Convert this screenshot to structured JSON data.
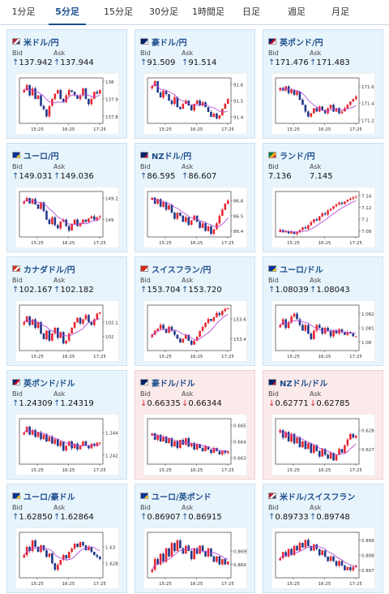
{
  "tabs": [
    {
      "label": "1分足"
    },
    {
      "label": "5分足"
    },
    {
      "label": "15分足"
    },
    {
      "label": "30分足"
    },
    {
      "label": "1時間足"
    },
    {
      "label": "日足"
    },
    {
      "label": "週足"
    },
    {
      "label": "月足"
    }
  ],
  "active_tab": 1,
  "colors": {
    "up": "#e8262f",
    "down": "#21388a",
    "ma": "#b64dd6",
    "accent": "#1d4f8c",
    "card_bg": "#e8f4fc",
    "card_bg_down": "#fbeaea"
  },
  "labels": {
    "bid": "Bid",
    "ask": "Ask"
  },
  "pairs": [
    {
      "name": "米ドル/円",
      "flag": "flag-us-icon",
      "dir": "up",
      "bid": "137.942",
      "ask": "137.944",
      "chart_data": {
        "type": "candlestick",
        "x_ticks": [
          "15:25",
          "16:25",
          "17:25"
        ],
        "y_ticks": [
          "138",
          "137.9",
          "137.8"
        ],
        "ylim": [
          137.76,
          138.02
        ],
        "close": [
          137.95,
          137.98,
          137.92,
          137.96,
          137.9,
          137.92,
          137.86,
          137.84,
          137.8,
          137.86,
          137.9,
          137.93,
          137.95,
          137.9,
          137.88,
          137.92,
          137.95,
          137.94,
          137.92,
          137.9,
          137.92,
          137.96,
          137.9,
          137.87,
          137.9,
          137.94,
          137.93,
          137.95
        ]
      }
    },
    {
      "name": "豪ドル/円",
      "flag": "flag-au-icon",
      "dir": "up",
      "bid": "91.509",
      "ask": "91.514",
      "chart_data": {
        "type": "candlestick",
        "x_ticks": [
          "15:25",
          "16:25",
          "17:25"
        ],
        "y_ticks": [
          "91.6",
          "91.5",
          "91.4"
        ],
        "ylim": [
          91.36,
          91.64
        ],
        "close": [
          91.59,
          91.62,
          91.55,
          91.52,
          91.56,
          91.54,
          91.5,
          91.48,
          91.52,
          91.46,
          91.45,
          91.48,
          91.5,
          91.47,
          91.44,
          91.48,
          91.5,
          91.47,
          91.49,
          91.46,
          91.43,
          91.4,
          91.42,
          91.39,
          91.41,
          91.45,
          91.48,
          91.51
        ]
      }
    },
    {
      "name": "英ポンド/円",
      "flag": "flag-gb-icon",
      "dir": "up",
      "bid": "171.476",
      "ask": "171.483",
      "chart_data": {
        "type": "candlestick",
        "x_ticks": [
          "15:25",
          "16:25",
          "17:25"
        ],
        "y_ticks": [
          "171.6",
          "171.4",
          "171.2"
        ],
        "ylim": [
          171.16,
          171.7
        ],
        "close": [
          171.58,
          171.55,
          171.6,
          171.52,
          171.56,
          171.5,
          171.54,
          171.44,
          171.38,
          171.3,
          171.24,
          171.28,
          171.34,
          171.3,
          171.36,
          171.32,
          171.28,
          171.34,
          171.38,
          171.3,
          171.34,
          171.28,
          171.3,
          171.34,
          171.38,
          171.42,
          171.45,
          171.48
        ]
      }
    },
    {
      "name": "ユーロ/円",
      "flag": "flag-eu-icon",
      "dir": "up",
      "bid": "149.031",
      "ask": "149.036",
      "chart_data": {
        "type": "candlestick",
        "x_ticks": [
          "15:25",
          "16:25",
          "17:25"
        ],
        "y_ticks": [
          "149.2",
          "149"
        ],
        "ylim": [
          148.84,
          149.26
        ],
        "close": [
          149.17,
          149.2,
          149.15,
          149.19,
          149.14,
          149.1,
          149.16,
          149.08,
          149.0,
          148.96,
          149.02,
          148.95,
          148.92,
          148.98,
          149.0,
          148.94,
          148.9,
          148.96,
          149.0,
          148.94,
          148.97,
          149.0,
          148.98,
          149.01,
          149.03,
          149.0,
          149.02,
          149.03
        ]
      }
    },
    {
      "name": "NZドル/円",
      "flag": "flag-nz-icon",
      "dir": "up",
      "bid": "86.595",
      "ask": "86.607",
      "chart_data": {
        "type": "candlestick",
        "x_ticks": [
          "15:25",
          "16:25",
          "17:25"
        ],
        "y_ticks": [
          "86.6",
          "86.5",
          "86.4"
        ],
        "ylim": [
          86.36,
          86.66
        ],
        "close": [
          86.62,
          86.58,
          86.61,
          86.56,
          86.59,
          86.54,
          86.57,
          86.52,
          86.48,
          86.52,
          86.5,
          86.46,
          86.49,
          86.44,
          86.47,
          86.5,
          86.46,
          86.42,
          86.45,
          86.4,
          86.43,
          86.38,
          86.41,
          86.45,
          86.5,
          86.54,
          86.58,
          86.6
        ]
      }
    },
    {
      "name": "ランド/円",
      "flag": "flag-za-icon",
      "dir": "neutral",
      "bid": "7.136",
      "ask": "7.145",
      "chart_data": {
        "type": "candlestick",
        "x_ticks": [
          "15:25",
          "16:25",
          "17:25"
        ],
        "y_ticks": [
          "7.14",
          "7.12",
          "7.1",
          "7.08"
        ],
        "ylim": [
          7.07,
          7.147
        ],
        "close": [
          7.082,
          7.078,
          7.08,
          7.076,
          7.079,
          7.075,
          7.078,
          7.082,
          7.086,
          7.084,
          7.09,
          7.095,
          7.1,
          7.098,
          7.105,
          7.11,
          7.108,
          7.115,
          7.118,
          7.122,
          7.125,
          7.128,
          7.126,
          7.13,
          7.133,
          7.135,
          7.137,
          7.138
        ]
      }
    },
    {
      "name": "カナダドル/円",
      "flag": "flag-ca-icon",
      "dir": "up",
      "bid": "102.167",
      "ask": "102.182",
      "chart_data": {
        "type": "candlestick",
        "x_ticks": [
          "15:25",
          "16:25",
          "17:25"
        ],
        "y_ticks": [
          "102.1",
          "102"
        ],
        "ylim": [
          101.9,
          102.22
        ],
        "close": [
          102.1,
          102.14,
          102.08,
          102.12,
          102.06,
          102.1,
          102.02,
          101.98,
          102.04,
          101.97,
          102.02,
          102.06,
          101.99,
          102.03,
          101.95,
          101.97,
          102.02,
          102.06,
          102.1,
          102.13,
          102.09,
          102.12,
          102.15,
          102.1,
          102.08,
          102.12,
          102.16,
          102.17
        ]
      }
    },
    {
      "name": "スイスフラン/円",
      "flag": "flag-ch-icon",
      "dir": "up",
      "bid": "153.704",
      "ask": "153.720",
      "chart_data": {
        "type": "candlestick",
        "x_ticks": [
          "15:25",
          "16:25",
          "17:25"
        ],
        "y_ticks": [
          "153.6",
          "153.4"
        ],
        "ylim": [
          153.28,
          153.74
        ],
        "close": [
          153.44,
          153.48,
          153.5,
          153.54,
          153.5,
          153.46,
          153.52,
          153.48,
          153.44,
          153.4,
          153.36,
          153.4,
          153.44,
          153.38,
          153.34,
          153.38,
          153.42,
          153.48,
          153.52,
          153.56,
          153.6,
          153.58,
          153.62,
          153.66,
          153.64,
          153.68,
          153.7,
          153.71
        ]
      }
    },
    {
      "name": "ユーロ/ドル",
      "flag": "flag-eu-icon",
      "dir": "up",
      "bid": "1.08039",
      "ask": "1.08043",
      "chart_data": {
        "type": "candlestick",
        "x_ticks": [
          "15:25",
          "16:25",
          "17:25"
        ],
        "y_ticks": [
          "1.082",
          "1.081",
          "1.08"
        ],
        "ylim": [
          1.0794,
          1.0826
        ],
        "close": [
          1.0812,
          1.0816,
          1.081,
          1.0814,
          1.0818,
          1.082,
          1.0816,
          1.0812,
          1.0808,
          1.0812,
          1.0806,
          1.0802,
          1.0808,
          1.0812,
          1.081,
          1.0806,
          1.081,
          1.0808,
          1.0804,
          1.0808,
          1.0806,
          1.0809,
          1.0807,
          1.0805,
          1.0807,
          1.0806,
          1.0804,
          1.0804
        ]
      }
    },
    {
      "name": "英ポンド/ドル",
      "flag": "flag-gb-icon",
      "dir": "up",
      "bid": "1.24309",
      "ask": "1.24319",
      "chart_data": {
        "type": "candlestick",
        "x_ticks": [
          "15:25",
          "16:25",
          "17:25"
        ],
        "y_ticks": [
          "1.244",
          "1.242"
        ],
        "ylim": [
          1.2412,
          1.2452
        ],
        "close": [
          1.244,
          1.2445,
          1.2438,
          1.2442,
          1.2436,
          1.244,
          1.2434,
          1.2438,
          1.2432,
          1.2436,
          1.243,
          1.2434,
          1.2428,
          1.2432,
          1.2424,
          1.2428,
          1.2432,
          1.2426,
          1.243,
          1.2425,
          1.2428,
          1.2432,
          1.2428,
          1.2426,
          1.243,
          1.2428,
          1.2431,
          1.2431
        ]
      }
    },
    {
      "name": "豪ドル/ドル",
      "flag": "flag-au-icon",
      "dir": "down",
      "bid": "0.66335",
      "ask": "0.66344",
      "chart_data": {
        "type": "candlestick",
        "x_ticks": [
          "15:25",
          "16:25",
          "17:25"
        ],
        "y_ticks": [
          "0.665",
          "0.664",
          "0.663"
        ],
        "ylim": [
          0.6626,
          0.6654
        ],
        "close": [
          0.6645,
          0.6641,
          0.6644,
          0.664,
          0.6643,
          0.6639,
          0.6642,
          0.6637,
          0.664,
          0.6636,
          0.6641,
          0.6638,
          0.6642,
          0.6637,
          0.6639,
          0.6635,
          0.6638,
          0.6636,
          0.6634,
          0.6637,
          0.6635,
          0.6633,
          0.6636,
          0.6634,
          0.6632,
          0.6634,
          0.6633,
          0.6634
        ]
      }
    },
    {
      "name": "NZドル/ドル",
      "flag": "flag-nz-icon",
      "dir": "down",
      "bid": "0.62771",
      "ask": "0.62785",
      "chart_data": {
        "type": "candlestick",
        "x_ticks": [
          "15:25",
          "16:25",
          "17:25"
        ],
        "y_ticks": [
          "0.628",
          "0.627"
        ],
        "ylim": [
          0.6262,
          0.6286
        ],
        "close": [
          0.628,
          0.6276,
          0.6279,
          0.6274,
          0.6278,
          0.6273,
          0.6276,
          0.6271,
          0.6274,
          0.627,
          0.6273,
          0.6268,
          0.6272,
          0.6269,
          0.6266,
          0.627,
          0.6267,
          0.6265,
          0.6268,
          0.6264,
          0.6267,
          0.627,
          0.6268,
          0.6272,
          0.6275,
          0.6278,
          0.6276,
          0.6277
        ]
      }
    },
    {
      "name": "ユーロ/豪ドル",
      "flag": "flag-eu-icon",
      "dir": "up",
      "bid": "1.62850",
      "ask": "1.62864",
      "chart_data": {
        "type": "candlestick",
        "x_ticks": [
          "15:25",
          "16:25",
          "17:25"
        ],
        "y_ticks": [
          "1.63",
          "1.628"
        ],
        "ylim": [
          1.6262,
          1.6318
        ],
        "close": [
          1.629,
          1.63,
          1.6295,
          1.6308,
          1.63,
          1.6294,
          1.6302,
          1.6296,
          1.6288,
          1.6292,
          1.628,
          1.6272,
          1.6278,
          1.6284,
          1.629,
          1.6286,
          1.6294,
          1.6298,
          1.6304,
          1.63,
          1.6306,
          1.6302,
          1.6296,
          1.63,
          1.6294,
          1.629,
          1.6288,
          1.6285
        ]
      }
    },
    {
      "name": "ユーロ/英ポンド",
      "flag": "flag-eu-icon",
      "dir": "up",
      "bid": "0.86907",
      "ask": "0.86915",
      "chart_data": {
        "type": "candlestick",
        "x_ticks": [
          "15:25",
          "16:25",
          "17:25"
        ],
        "y_ticks": [
          "0.8695",
          "0.869"
        ],
        "ylim": [
          0.8685,
          0.8702
        ],
        "close": [
          0.8688,
          0.8692,
          0.869,
          0.8694,
          0.8691,
          0.8696,
          0.8693,
          0.8698,
          0.8695,
          0.8699,
          0.8696,
          0.8694,
          0.8697,
          0.8695,
          0.8692,
          0.8696,
          0.8694,
          0.8697,
          0.8695,
          0.8693,
          0.8696,
          0.8693,
          0.8691,
          0.8693,
          0.869,
          0.8692,
          0.869,
          0.8691
        ]
      }
    },
    {
      "name": "米ドル/スイスフラン",
      "flag": "flag-us-icon",
      "dir": "up",
      "bid": "0.89733",
      "ask": "0.89748",
      "chart_data": {
        "type": "candlestick",
        "x_ticks": [
          "15:25",
          "16:25",
          "17:25"
        ],
        "y_ticks": [
          "0.899",
          "0.898",
          "0.897"
        ],
        "ylim": [
          0.8965,
          0.8995
        ],
        "close": [
          0.8978,
          0.8982,
          0.8979,
          0.8984,
          0.898,
          0.8986,
          0.8983,
          0.8988,
          0.8985,
          0.899,
          0.8986,
          0.8983,
          0.8987,
          0.8984,
          0.898,
          0.8983,
          0.8979,
          0.8976,
          0.8979,
          0.8976,
          0.8973,
          0.8976,
          0.8973,
          0.897,
          0.8972,
          0.897,
          0.8972,
          0.8973
        ]
      }
    }
  ]
}
